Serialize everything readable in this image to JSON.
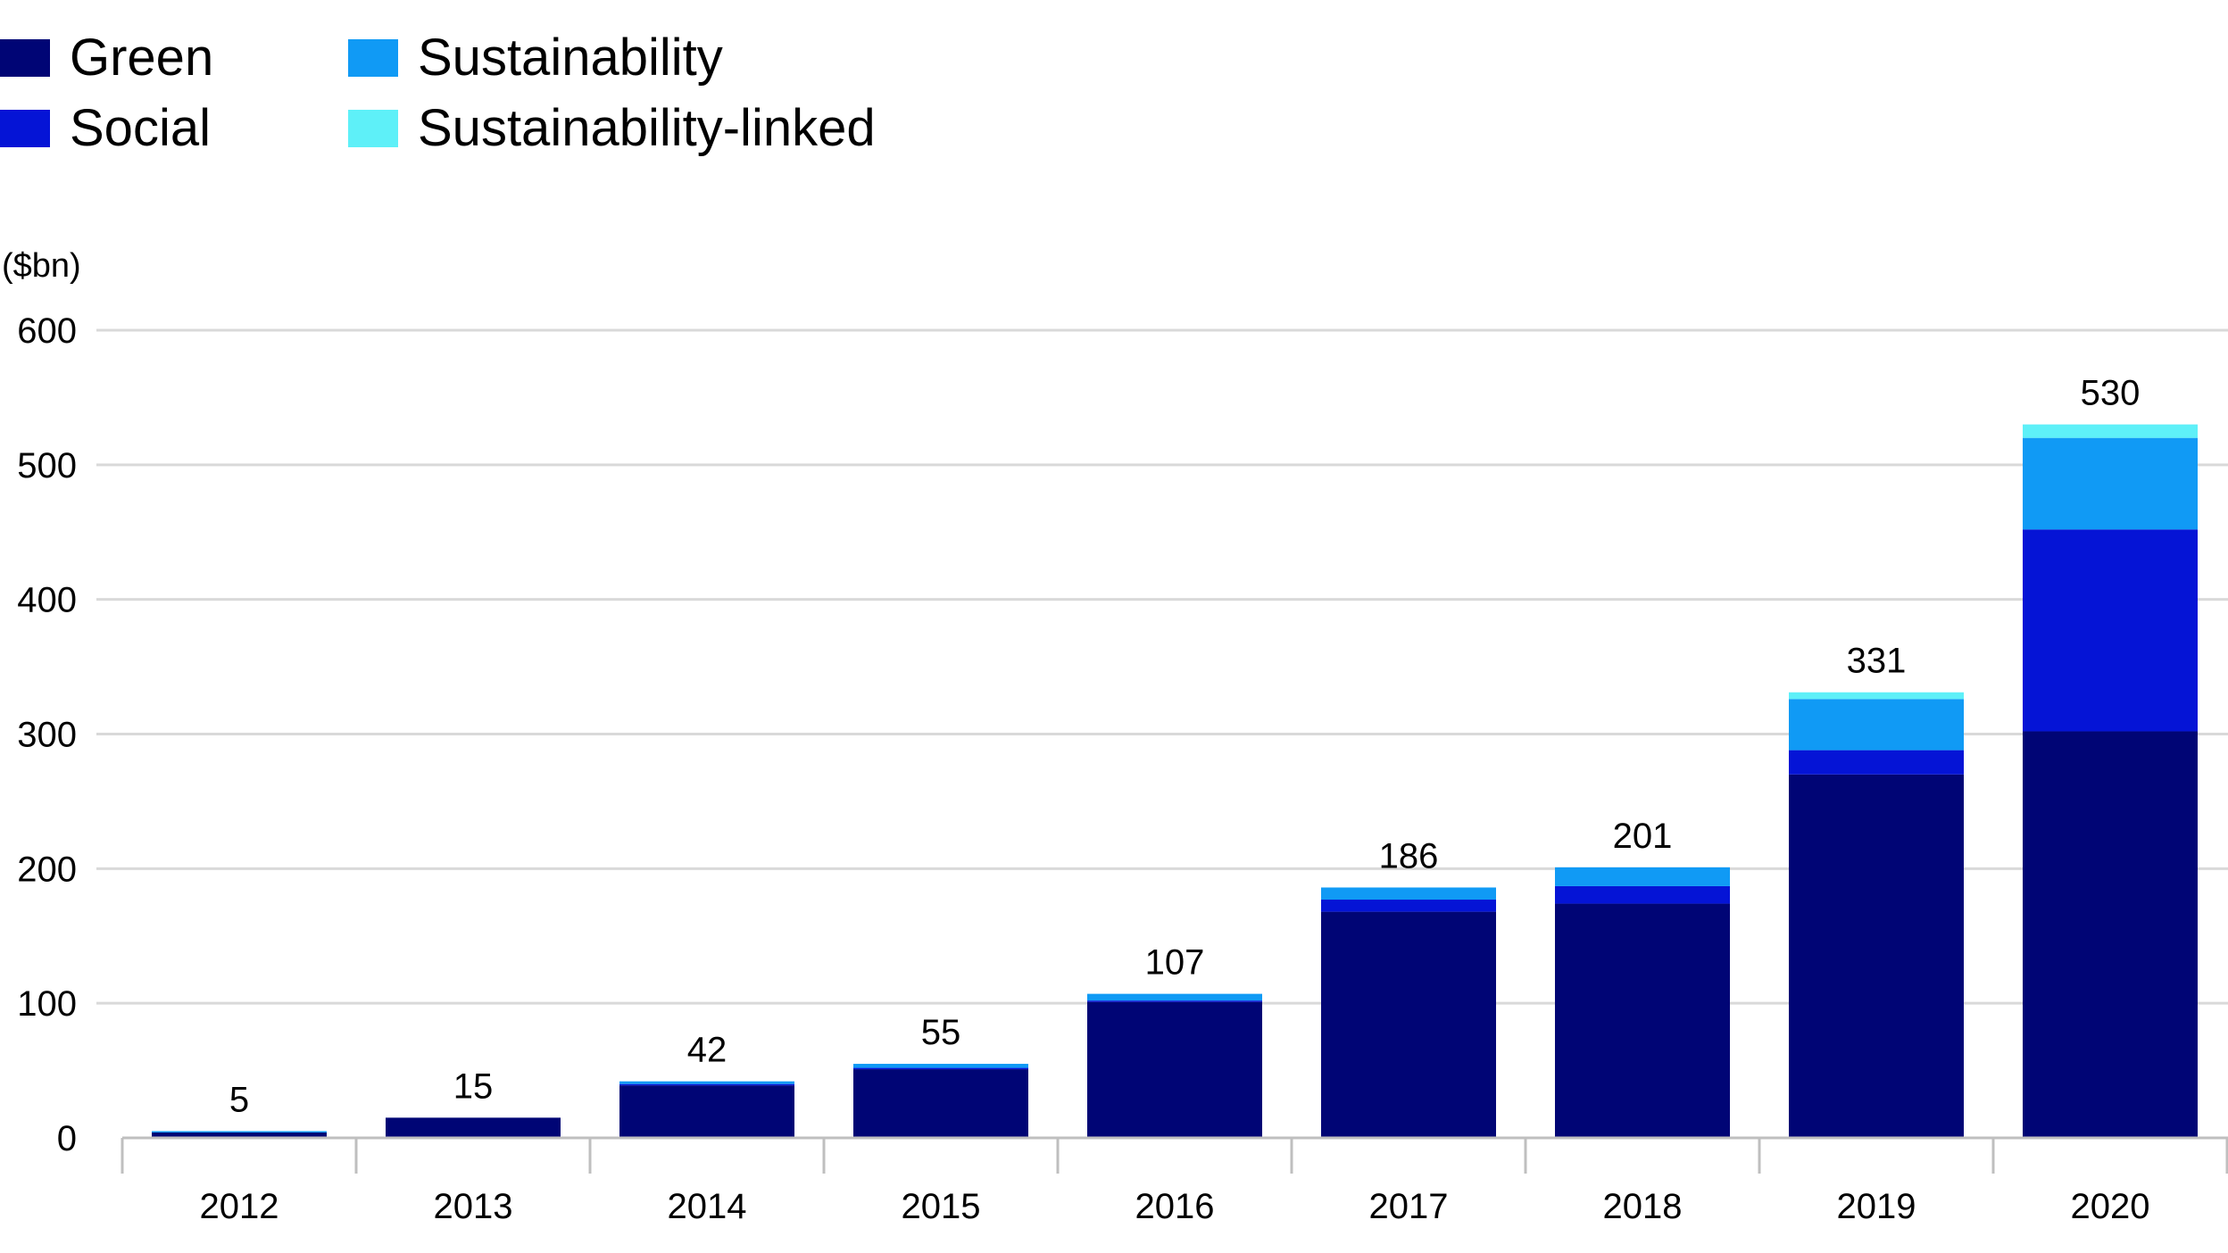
{
  "chart_data": {
    "type": "bar",
    "stacked": true,
    "unit_label": "($bn)",
    "categories": [
      "2012",
      "2013",
      "2014",
      "2015",
      "2016",
      "2017",
      "2018",
      "2019",
      "2020"
    ],
    "series": [
      {
        "name": "Green",
        "color": "#000575",
        "values": [
          4,
          15,
          39,
          51,
          101,
          168,
          174,
          270,
          302
        ]
      },
      {
        "name": "Social",
        "color": "#0514d6",
        "values": [
          0,
          0,
          1,
          1,
          1,
          9,
          13,
          18,
          150
        ]
      },
      {
        "name": "Sustainability",
        "color": "#109af5",
        "values": [
          1,
          0,
          2,
          3,
          5,
          9,
          14,
          38,
          68
        ]
      },
      {
        "name": "Sustainability-linked",
        "color": "#5ef0f8",
        "values": [
          0,
          0,
          0,
          0,
          0,
          0,
          0,
          5,
          10
        ]
      }
    ],
    "totals": [
      "5",
      "15",
      "42",
      "55",
      "107",
      "186",
      "201",
      "331",
      "530"
    ],
    "y_ticks": [
      "0",
      "100",
      "200",
      "300",
      "400",
      "500",
      "600"
    ],
    "ylim": [
      0,
      600
    ],
    "grid": true,
    "legend_position": "top-left"
  }
}
